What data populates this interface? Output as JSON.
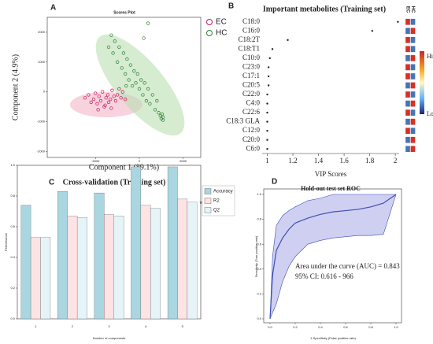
{
  "chart_data": [
    {
      "panel": "A",
      "type": "scatter",
      "title": "Scores Plot",
      "xlabel": "Component 1 (89.1%)",
      "ylabel": "Component 2 (4.9%)",
      "xlim": [
        -10500,
        7000
      ],
      "ylim": [
        -2200,
        2500
      ],
      "xticks": [
        -5000,
        0,
        5000
      ],
      "yticks": [
        -2000,
        -1000,
        0,
        1000,
        2000
      ],
      "legend": "right",
      "series": [
        {
          "name": "EC",
          "color": "#c2185b",
          "x": [
            -6200,
            -5800,
            -5500,
            -5200,
            -5000,
            -4800,
            -4600,
            -4400,
            -4200,
            -4000,
            -3800,
            -3600,
            -3500,
            -3300,
            -3100,
            -2900,
            -2700,
            -2500,
            -2300,
            -2100,
            -1900,
            -1600,
            -4700,
            -3900,
            -3200
          ],
          "values": [
            -200,
            -100,
            -350,
            -250,
            -50,
            -400,
            -150,
            -300,
            0,
            -500,
            -200,
            -100,
            -350,
            -250,
            50,
            -150,
            -300,
            -100,
            100,
            -200,
            0,
            -250,
            -600,
            -450,
            -550
          ]
        },
        {
          "name": "HC",
          "color": "#2e7d32",
          "x": [
            -3500,
            -3200,
            -3000,
            -2800,
            -2500,
            -2300,
            -2000,
            -1800,
            -1600,
            -1400,
            -1200,
            -1000,
            -800,
            -600,
            -400,
            -200,
            0,
            200,
            400,
            600,
            800,
            1000,
            1200,
            1500,
            1800,
            2000,
            2200,
            2400,
            2500,
            2600,
            2700,
            2700,
            1000,
            500,
            -1500
          ],
          "values": [
            1500,
            1900,
            1300,
            1700,
            1000,
            1500,
            800,
            1300,
            600,
            1100,
            400,
            900,
            200,
            700,
            300,
            600,
            100,
            400,
            -100,
            300,
            -300,
            100,
            -400,
            -100,
            -600,
            -300,
            -700,
            -800,
            -900,
            -750,
            -850,
            -950,
            2300,
            1800,
            200
          ]
        }
      ]
    },
    {
      "panel": "B",
      "type": "dot",
      "title": "Important metabolites (Training set)",
      "xlabel": "VIP Scores",
      "categories": [
        "C18:0",
        "C16:0",
        "C18:2T",
        "C18:T1",
        "C10:0",
        "C23:0",
        "C17:1",
        "C20:5",
        "C22:0",
        "C4:0",
        "C22:6",
        "C18:3 GLA",
        "C12:0",
        "C20:0",
        "C6:0"
      ],
      "values": [
        2.02,
        1.82,
        1.16,
        1.04,
        1.02,
        1.01,
        1.01,
        1.01,
        1.0,
        1.0,
        1.0,
        1.0,
        1.0,
        1.0,
        1.0
      ],
      "xlim": [
        0.96,
        2.03
      ],
      "xticks": [
        1,
        1.2,
        1.4,
        1.6,
        1.8,
        2
      ],
      "color": "#222222",
      "heatmap_columns": [
        "EC",
        "HC"
      ],
      "heatmap_colors": [
        [
          "#d73027",
          "#4575b4"
        ],
        [
          "#4575b4",
          "#d73027"
        ],
        [
          "#d73027",
          "#4575b4"
        ],
        [
          "#d73027",
          "#4575b4"
        ],
        [
          "#4575b4",
          "#d73027"
        ],
        [
          "#d73027",
          "#4575b4"
        ],
        [
          "#d73027",
          "#4575b4"
        ],
        [
          "#4575b4",
          "#d73027"
        ],
        [
          "#d73027",
          "#4575b4"
        ],
        [
          "#4575b4",
          "#d73027"
        ],
        [
          "#d73027",
          "#4575b4"
        ],
        [
          "#4575b4",
          "#d73027"
        ],
        [
          "#d73027",
          "#4575b4"
        ],
        [
          "#4575b4",
          "#d73027"
        ],
        [
          "#4575b4",
          "#d73027"
        ]
      ],
      "colorbar_labels": [
        "High",
        "Low"
      ]
    },
    {
      "panel": "C",
      "type": "bar",
      "title": "Cross-validation (Training set)",
      "xlabel": "Number of components",
      "ylabel": "Performance",
      "categories": [
        "1",
        "2",
        "3",
        "4",
        "5"
      ],
      "ylim": [
        0,
        1
      ],
      "yticks": [
        {
          "value": 0,
          "label": "0.0"
        },
        0.2,
        0.4,
        0.6,
        0.8,
        {
          "value": 1,
          "label": "1.0"
        }
      ],
      "legend": "right",
      "annotation": "*",
      "series": [
        {
          "name": "Accuracy",
          "color": "#a9d6e0",
          "values": [
            0.74,
            0.83,
            0.82,
            0.99,
            0.99
          ]
        },
        {
          "name": "R2",
          "color": "#fde3e3",
          "values": [
            0.53,
            0.67,
            0.68,
            0.74,
            0.78
          ]
        },
        {
          "name": "Q2",
          "color": "#e6f4f8",
          "values": [
            0.53,
            0.66,
            0.67,
            0.72,
            0.76
          ]
        }
      ]
    },
    {
      "panel": "D",
      "type": "line",
      "title": "Hold-out test set ROC",
      "xlabel": "1-Specificity (False positive rate)",
      "ylabel": "Sensitivity (True positive rate)",
      "xlim": [
        0,
        1
      ],
      "ylim": [
        0,
        1
      ],
      "xticks": [
        {
          "value": 0,
          "label": "0.0"
        },
        0.2,
        0.4,
        0.6,
        0.8,
        {
          "value": 1,
          "label": "1.0"
        }
      ],
      "yticks": [
        {
          "value": 0,
          "label": "0.0"
        },
        0.2,
        0.4,
        0.6,
        0.8,
        {
          "value": 1,
          "label": "1.0"
        }
      ],
      "annotations": [
        "Area under the curve (AUC) = 0.843",
        "95% CI: 0.616 - 966"
      ],
      "color": "#3f4fb5",
      "band_color": "#cfcff2",
      "x": [
        0,
        0.02,
        0.05,
        0.1,
        0.15,
        0.2,
        0.3,
        0.4,
        0.5,
        0.6,
        0.7,
        0.8,
        0.9,
        1
      ],
      "values": [
        0,
        0.35,
        0.55,
        0.65,
        0.72,
        0.77,
        0.81,
        0.84,
        0.86,
        0.87,
        0.88,
        0.9,
        0.93,
        1
      ],
      "ci_upper": [
        0,
        0.5,
        0.75,
        0.83,
        0.87,
        0.9,
        0.95,
        0.97,
        1,
        1,
        1,
        1,
        1,
        1
      ],
      "ci_lower": [
        0,
        0.05,
        0.12,
        0.3,
        0.42,
        0.5,
        0.6,
        0.63,
        0.65,
        0.66,
        0.67,
        0.67,
        0.68,
        1
      ]
    }
  ]
}
